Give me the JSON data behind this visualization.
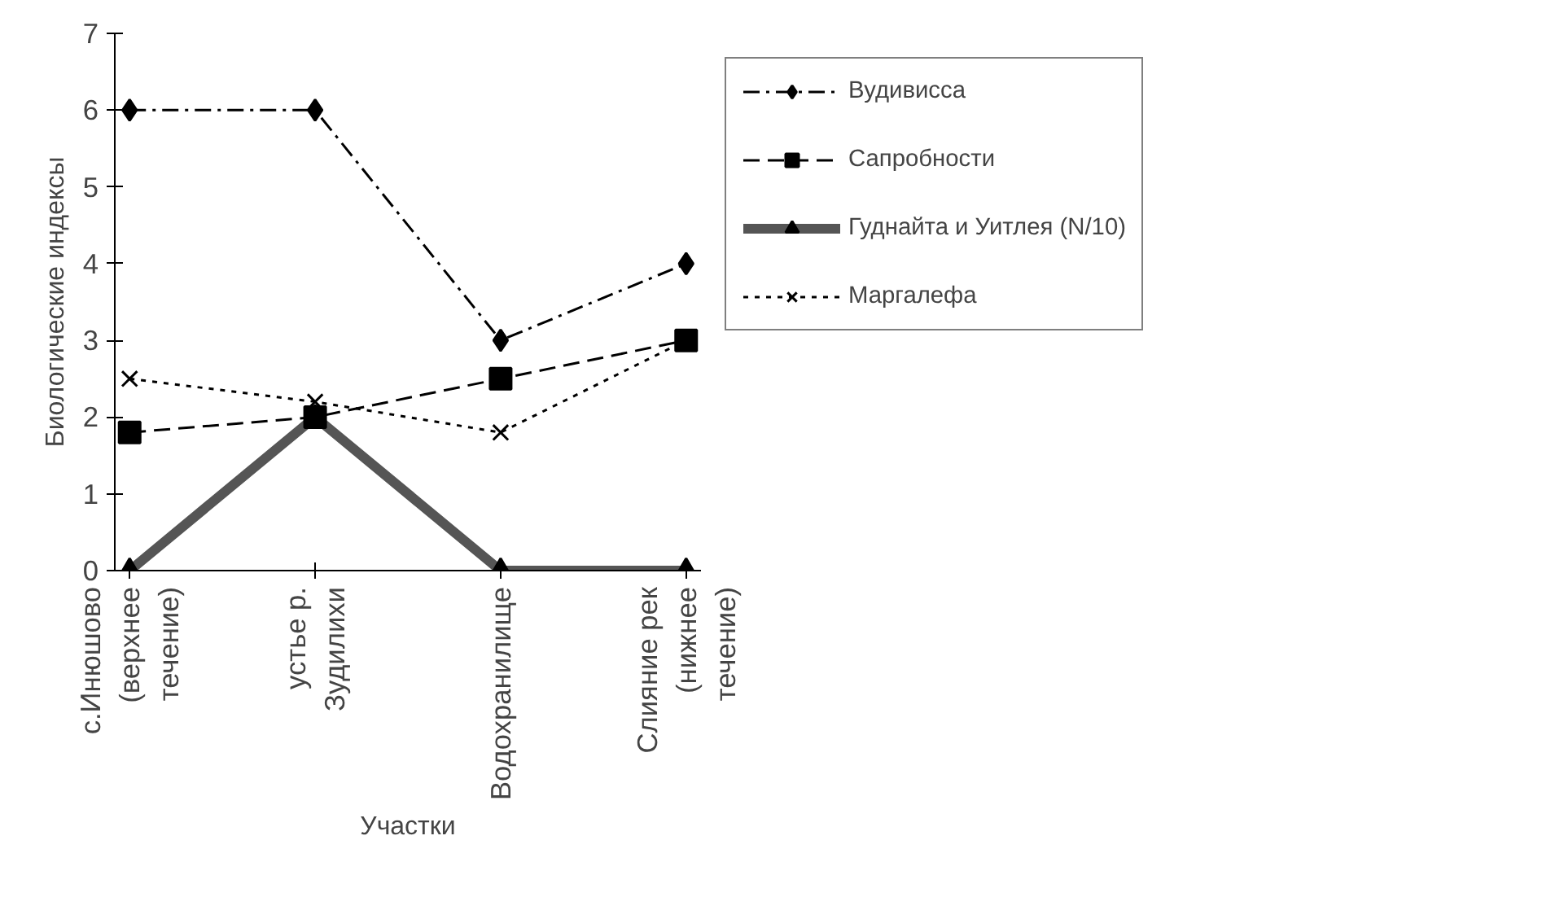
{
  "chart_data": {
    "type": "line",
    "xlabel": "Участки",
    "ylabel": "Биологические индексы",
    "categories": [
      "с.Инюшово\n(верхнее\nтечение)",
      "устье р.\nЗудилихи",
      "Водохранилище",
      "Слияние рек\n(нижнее\nтечение)"
    ],
    "ylim": [
      0,
      7
    ],
    "yticks": [
      0,
      1,
      2,
      3,
      4,
      5,
      6,
      7
    ],
    "grid": false,
    "legend": "right",
    "series": [
      {
        "name": "Вудивисса",
        "color": "#000000",
        "values": [
          6,
          6,
          3,
          4
        ],
        "marker": "diamond",
        "line_style": "dashdot"
      },
      {
        "name": "Сапробности",
        "color": "#000000",
        "values": [
          1.8,
          2.0,
          2.5,
          3.0
        ],
        "marker": "square",
        "line_style": "dashed"
      },
      {
        "name": "Гуднайта и Уитлея (N/10)",
        "color": "#555555",
        "values": [
          0,
          2,
          0,
          0
        ],
        "marker": "triangle",
        "line_style": "solid"
      },
      {
        "name": "Маргалефа",
        "color": "#000000",
        "values": [
          2.5,
          2.2,
          1.8,
          3.0
        ],
        "marker": "cross",
        "line_style": "dotted"
      }
    ]
  }
}
